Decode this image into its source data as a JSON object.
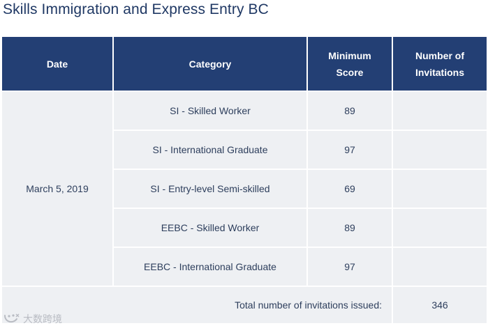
{
  "title": "Skills Immigration and Express Entry BC",
  "table": {
    "headers": {
      "date": "Date",
      "category": "Category",
      "min_score_line1": "Minimum",
      "min_score_line2": "Score",
      "invitations_line1": "Number of",
      "invitations_line2": "Invitations"
    },
    "date": "March 5, 2019",
    "rows": [
      {
        "category": "SI - Skilled Worker",
        "min_score": "89",
        "invitations": ""
      },
      {
        "category": "SI - International Graduate",
        "min_score": "97",
        "invitations": ""
      },
      {
        "category": "SI - Entry-level Semi-skilled",
        "min_score": "69",
        "invitations": ""
      },
      {
        "category": "EEBC - Skilled Worker",
        "min_score": "89",
        "invitations": ""
      },
      {
        "category": "EEBC - International Graduate",
        "min_score": "97",
        "invitations": ""
      }
    ],
    "total_label": "Total number of invitations issued:",
    "total_value": "346"
  },
  "watermark": {
    "icon": "smile-logo-icon",
    "text": "大数跨境"
  }
}
